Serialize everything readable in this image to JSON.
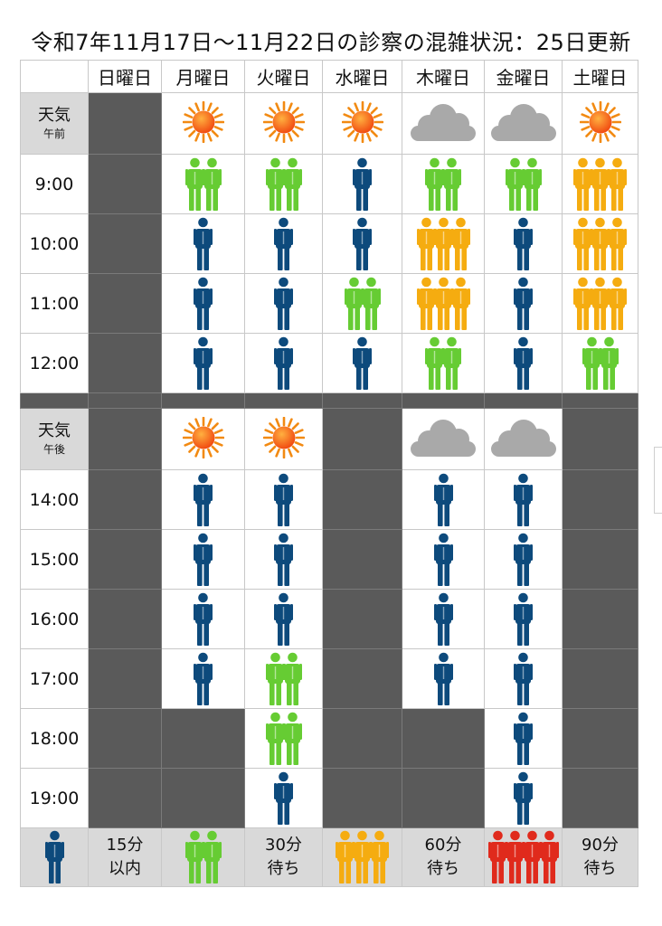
{
  "title": "令和7年11月17日〜11月22日の診察の混雑状況：25日更新",
  "days": [
    "日曜日",
    "月曜日",
    "火曜日",
    "水曜日",
    "木曜日",
    "金曜日",
    "土曜日"
  ],
  "colors": {
    "blue": "#0d4a7c",
    "green": "#66cc33",
    "orange": "#f5ac10",
    "red": "#e02a1c",
    "closed": "#5a5a5a",
    "label_bg": "#d9d9d9"
  },
  "morning": {
    "weather_label": "天気",
    "weather_sub": "午前",
    "weather": [
      "closed",
      "sun",
      "sun",
      "sun",
      "cloud",
      "cloud",
      "sun"
    ],
    "rows": [
      {
        "time": "9:00",
        "cells": [
          "closed",
          "green",
          "green",
          "blue",
          "green",
          "green",
          "orange"
        ]
      },
      {
        "time": "10:00",
        "cells": [
          "closed",
          "blue",
          "blue",
          "blue",
          "orange",
          "blue",
          "orange"
        ]
      },
      {
        "time": "11:00",
        "cells": [
          "closed",
          "blue",
          "blue",
          "green",
          "orange",
          "blue",
          "orange"
        ]
      },
      {
        "time": "12:00",
        "cells": [
          "closed",
          "blue",
          "blue",
          "blue",
          "green",
          "blue",
          "green"
        ]
      }
    ]
  },
  "afternoon": {
    "weather_label": "天気",
    "weather_sub": "午後",
    "weather": [
      "closed",
      "sun",
      "sun",
      "closed",
      "cloud",
      "cloud",
      "closed"
    ],
    "rows": [
      {
        "time": "14:00",
        "cells": [
          "closed",
          "blue",
          "blue",
          "closed",
          "blue",
          "blue",
          "closed"
        ]
      },
      {
        "time": "15:00",
        "cells": [
          "closed",
          "blue",
          "blue",
          "closed",
          "blue",
          "blue",
          "closed"
        ]
      },
      {
        "time": "16:00",
        "cells": [
          "closed",
          "blue",
          "blue",
          "closed",
          "blue",
          "blue",
          "closed"
        ]
      },
      {
        "time": "17:00",
        "cells": [
          "closed",
          "blue",
          "green",
          "closed",
          "blue",
          "blue",
          "closed"
        ]
      },
      {
        "time": "18:00",
        "cells": [
          "closed",
          "closed",
          "green",
          "closed",
          "closed",
          "blue",
          "closed"
        ]
      },
      {
        "time": "19:00",
        "cells": [
          "closed",
          "closed",
          "blue",
          "closed",
          "closed",
          "blue",
          "closed"
        ]
      }
    ]
  },
  "legend": [
    {
      "level": "blue",
      "line1": "15分",
      "line2": "以内"
    },
    {
      "level": "green",
      "line1": "30分",
      "line2": "待ち"
    },
    {
      "level": "orange",
      "line1": "60分",
      "line2": "待ち"
    },
    {
      "level": "red",
      "line1": "90分",
      "line2": "待ち"
    }
  ]
}
